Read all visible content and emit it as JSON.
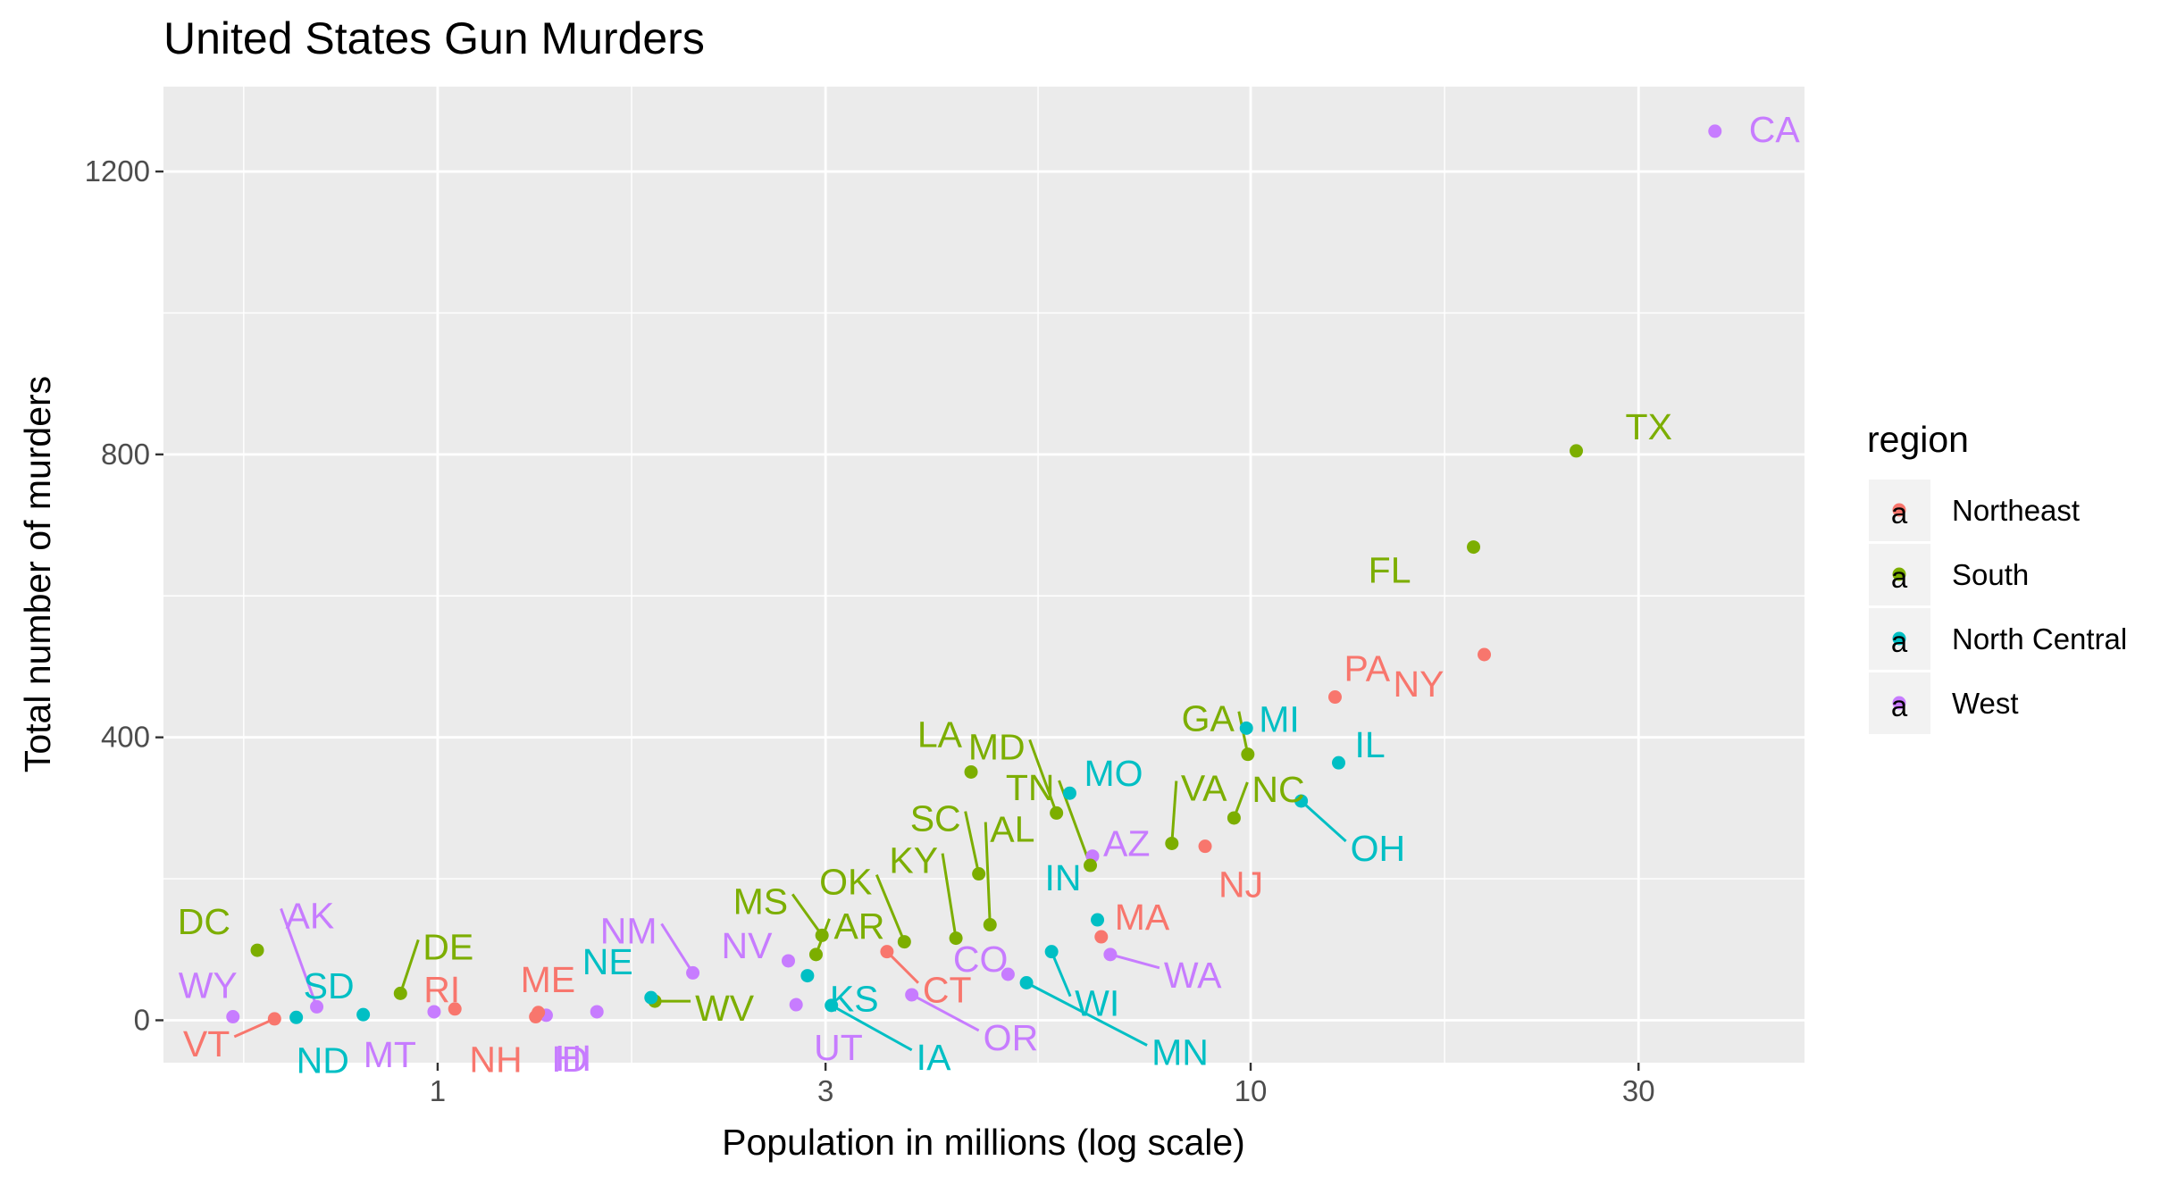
{
  "chart_data": {
    "type": "scatter",
    "title": "United States Gun Murders",
    "xlabel": "Population in millions (log scale)",
    "ylabel": "Total number of murders",
    "x_scale": "log10",
    "xlim": [
      0.46,
      48
    ],
    "ylim": [
      -60,
      1320
    ],
    "x_ticks": [
      1,
      3,
      10,
      30
    ],
    "y_ticks": [
      0,
      400,
      800,
      1200
    ],
    "grid": true,
    "legend": {
      "title": "region",
      "position": "right",
      "entries": [
        {
          "name": "Northeast",
          "color": "#F8766D"
        },
        {
          "name": "South",
          "color": "#7CAE00"
        },
        {
          "name": "North Central",
          "color": "#00BFC4"
        },
        {
          "name": "West",
          "color": "#C77CFF"
        }
      ]
    },
    "points": [
      {
        "label": "CA",
        "region": "West",
        "population": 37.25,
        "murders": 1257
      },
      {
        "label": "TX",
        "region": "South",
        "population": 25.15,
        "murders": 805
      },
      {
        "label": "FL",
        "region": "South",
        "population": 18.8,
        "murders": 669
      },
      {
        "label": "NY",
        "region": "Northeast",
        "population": 19.38,
        "murders": 517
      },
      {
        "label": "PA",
        "region": "Northeast",
        "population": 12.7,
        "murders": 457
      },
      {
        "label": "MI",
        "region": "North Central",
        "population": 9.88,
        "murders": 413
      },
      {
        "label": "GA",
        "region": "South",
        "population": 9.92,
        "murders": 376
      },
      {
        "label": "IL",
        "region": "North Central",
        "population": 12.83,
        "murders": 364
      },
      {
        "label": "LA",
        "region": "South",
        "population": 4.53,
        "murders": 351
      },
      {
        "label": "MO",
        "region": "North Central",
        "population": 5.99,
        "murders": 321
      },
      {
        "label": "OH",
        "region": "North Central",
        "population": 11.54,
        "murders": 310
      },
      {
        "label": "MD",
        "region": "South",
        "population": 5.77,
        "murders": 293
      },
      {
        "label": "NC",
        "region": "South",
        "population": 9.54,
        "murders": 286
      },
      {
        "label": "NJ",
        "region": "Northeast",
        "population": 8.79,
        "murders": 246
      },
      {
        "label": "VA",
        "region": "South",
        "population": 8.0,
        "murders": 250
      },
      {
        "label": "AZ",
        "region": "West",
        "population": 6.39,
        "murders": 232
      },
      {
        "label": "TN",
        "region": "South",
        "population": 6.35,
        "murders": 219
      },
      {
        "label": "AL",
        "region": "South",
        "population": 4.78,
        "murders": 135
      },
      {
        "label": "SC",
        "region": "South",
        "population": 4.63,
        "murders": 207
      },
      {
        "label": "IN",
        "region": "North Central",
        "population": 6.48,
        "murders": 142
      },
      {
        "label": "KY",
        "region": "South",
        "population": 4.34,
        "murders": 116
      },
      {
        "label": "MS",
        "region": "South",
        "population": 2.97,
        "murders": 120
      },
      {
        "label": "OK",
        "region": "South",
        "population": 3.75,
        "murders": 111
      },
      {
        "label": "MA",
        "region": "Northeast",
        "population": 6.55,
        "murders": 118
      },
      {
        "label": "AR",
        "region": "South",
        "population": 2.92,
        "murders": 93
      },
      {
        "label": "CT",
        "region": "Northeast",
        "population": 3.57,
        "murders": 97
      },
      {
        "label": "WA",
        "region": "West",
        "population": 6.72,
        "murders": 93
      },
      {
        "label": "WI",
        "region": "North Central",
        "population": 5.69,
        "murders": 97
      },
      {
        "label": "NV",
        "region": "West",
        "population": 2.7,
        "murders": 84
      },
      {
        "label": "CO",
        "region": "West",
        "population": 5.03,
        "murders": 65
      },
      {
        "label": "NM",
        "region": "West",
        "population": 2.06,
        "murders": 67
      },
      {
        "label": "KS",
        "region": "North Central",
        "population": 2.85,
        "murders": 63
      },
      {
        "label": "MN",
        "region": "North Central",
        "population": 5.3,
        "murders": 53
      },
      {
        "label": "OR",
        "region": "West",
        "population": 3.83,
        "murders": 36
      },
      {
        "label": "DC",
        "region": "South",
        "population": 0.6,
        "murders": 99
      },
      {
        "label": "DE",
        "region": "South",
        "population": 0.9,
        "murders": 38
      },
      {
        "label": "WV",
        "region": "South",
        "population": 1.85,
        "murders": 27
      },
      {
        "label": "NE",
        "region": "North Central",
        "population": 1.83,
        "murders": 32
      },
      {
        "label": "IA",
        "region": "North Central",
        "population": 3.05,
        "murders": 21
      },
      {
        "label": "UT",
        "region": "West",
        "population": 2.76,
        "murders": 22
      },
      {
        "label": "AK",
        "region": "West",
        "population": 0.71,
        "murders": 19
      },
      {
        "label": "RI",
        "region": "Northeast",
        "population": 1.05,
        "murders": 16
      },
      {
        "label": "MT",
        "region": "West",
        "population": 0.99,
        "murders": 12
      },
      {
        "label": "HI",
        "region": "West",
        "population": 1.36,
        "murders": 7
      },
      {
        "label": "ID",
        "region": "West",
        "population": 1.57,
        "murders": 12
      },
      {
        "label": "SD",
        "region": "North Central",
        "population": 0.81,
        "murders": 8
      },
      {
        "label": "ME",
        "region": "Northeast",
        "population": 1.33,
        "murders": 11
      },
      {
        "label": "NH",
        "region": "Northeast",
        "population": 1.32,
        "murders": 5
      },
      {
        "label": "ND",
        "region": "North Central",
        "population": 0.67,
        "murders": 4
      },
      {
        "label": "WY",
        "region": "West",
        "population": 0.56,
        "murders": 5
      },
      {
        "label": "VT",
        "region": "Northeast",
        "population": 0.63,
        "murders": 2
      }
    ]
  }
}
